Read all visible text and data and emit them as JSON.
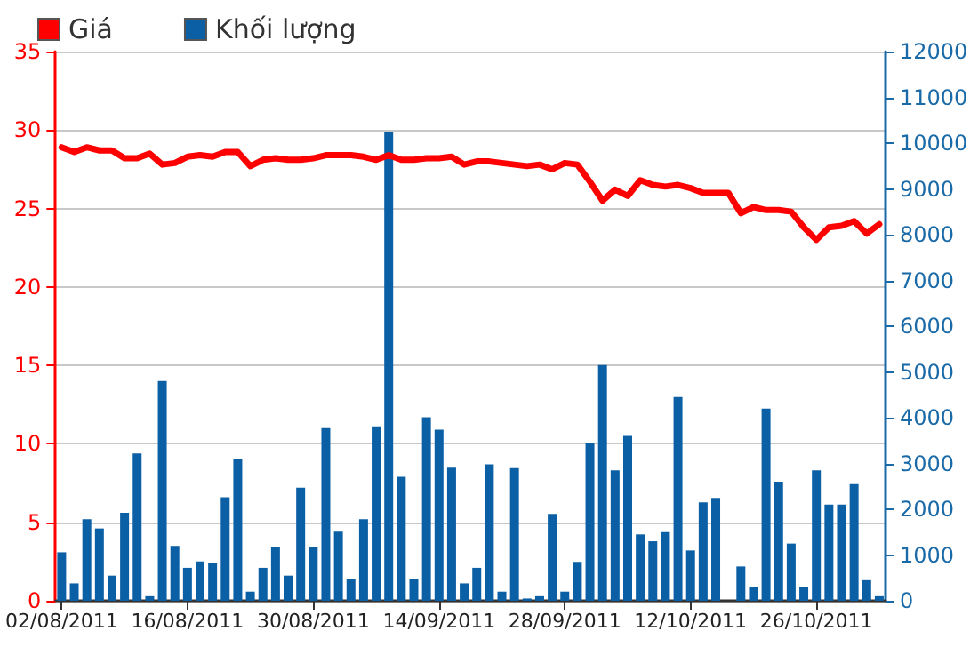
{
  "chart_data": {
    "type": "bar",
    "categories": [
      "02/08/2011",
      null,
      null,
      null,
      null,
      null,
      null,
      null,
      null,
      null,
      "16/08/2011",
      null,
      null,
      null,
      null,
      null,
      null,
      null,
      null,
      null,
      "30/08/2011",
      null,
      null,
      null,
      null,
      null,
      null,
      null,
      null,
      null,
      "14/09/2011",
      null,
      null,
      null,
      null,
      null,
      null,
      null,
      null,
      null,
      "28/09/2011",
      null,
      null,
      null,
      null,
      null,
      null,
      null,
      null,
      null,
      "12/10/2011",
      null,
      null,
      null,
      null,
      null,
      null,
      null,
      null,
      null,
      "26/10/2011",
      null,
      null,
      null,
      null,
      null
    ],
    "series": [
      {
        "name": "Giá",
        "type": "line",
        "color": "#ff0000",
        "values": [
          28.9,
          28.6,
          28.9,
          28.7,
          28.7,
          28.2,
          28.2,
          28.5,
          27.8,
          27.9,
          28.3,
          28.4,
          28.3,
          28.6,
          28.6,
          27.7,
          28.1,
          28.2,
          28.1,
          28.1,
          28.2,
          28.4,
          28.4,
          28.4,
          28.3,
          28.1,
          28.4,
          28.1,
          28.1,
          28.2,
          28.2,
          28.3,
          27.8,
          28.0,
          28.0,
          27.9,
          27.8,
          27.7,
          27.8,
          27.5,
          27.9,
          27.8,
          26.7,
          25.5,
          26.2,
          25.8,
          26.8,
          26.5,
          26.4,
          26.5,
          26.3,
          26.0,
          26.0,
          26.0,
          24.7,
          25.1,
          24.9,
          24.9,
          24.8,
          23.8,
          23.0,
          23.8,
          23.9,
          24.2,
          23.4,
          24.0
        ]
      },
      {
        "name": "Khối lượng",
        "type": "bar",
        "axis": "y2",
        "color": "#0b5fa5",
        "values": [
          1060,
          380,
          1780,
          1580,
          550,
          1920,
          3220,
          100,
          4800,
          1200,
          720,
          860,
          820,
          2260,
          3090,
          200,
          720,
          1170,
          550,
          2470,
          1170,
          3770,
          1510,
          480,
          1780,
          3810,
          10250,
          2710,
          480,
          4010,
          3740,
          2910,
          380,
          720,
          2980,
          200,
          2900,
          50,
          100,
          1900,
          200,
          850,
          3450,
          5150,
          2850,
          3600,
          1450,
          1300,
          1500,
          4450,
          1100,
          2150,
          2250,
          0,
          750,
          300,
          4200,
          2600,
          1250,
          300,
          2850,
          2100,
          2100,
          2550,
          450,
          100
        ]
      }
    ],
    "ylim": [
      0,
      35
    ],
    "yticks": [
      0,
      5,
      10,
      15,
      20,
      25,
      30,
      35
    ],
    "y2lim": [
      0,
      12000
    ],
    "y2ticks": [
      0,
      1000,
      2000,
      3000,
      4000,
      5000,
      6000,
      7000,
      8000,
      9000,
      10000,
      11000,
      12000
    ],
    "grid": "y",
    "legend": "top left",
    "marker": "none",
    "line_style": "solid"
  }
}
